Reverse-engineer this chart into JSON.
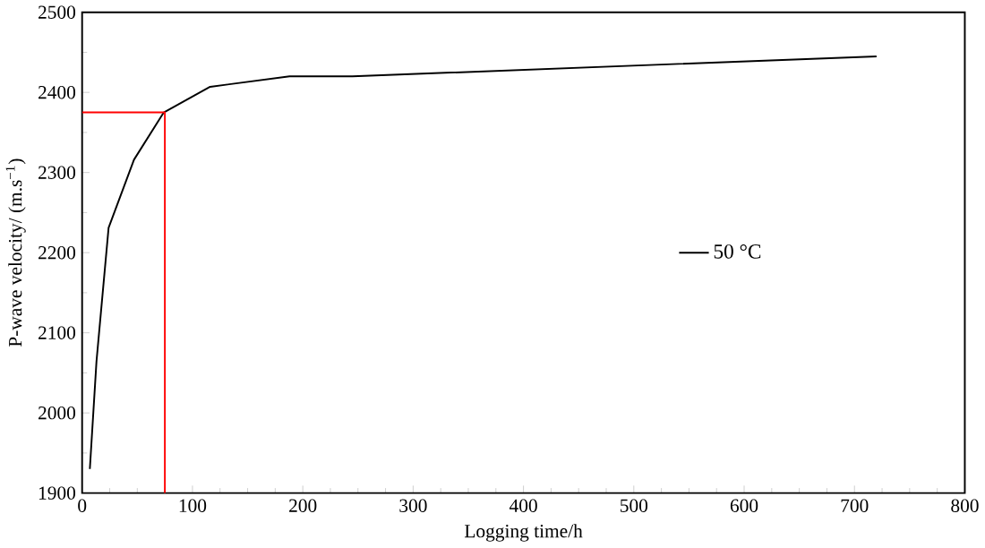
{
  "chart_data": {
    "type": "line",
    "xlabel": "Logging time/h",
    "ylabel": "P-wave velocity/ (m.s$^{−1}$)",
    "xlim": [
      0,
      800
    ],
    "xticks": [
      0,
      100,
      200,
      300,
      400,
      500,
      600,
      700,
      800
    ],
    "ylim": [
      1900,
      2500
    ],
    "yticks": [
      1900,
      2000,
      2100,
      2200,
      2300,
      2400,
      2500
    ],
    "grid": false,
    "legend": "right",
    "marker": "none",
    "series": [
      {
        "name": "50 °C",
        "color": "#000000",
        "x": [
          7,
          13,
          24,
          47,
          74,
          116,
          188,
          245,
          720
        ],
        "values": [
          1930,
          2064,
          2231,
          2316,
          2375,
          2407,
          2420,
          2420,
          2445
        ]
      },
      {
        "color": "#ff0000",
        "x": [
          0,
          75,
          75
        ],
        "values": [
          2375,
          2375,
          1900
        ]
      }
    ]
  }
}
